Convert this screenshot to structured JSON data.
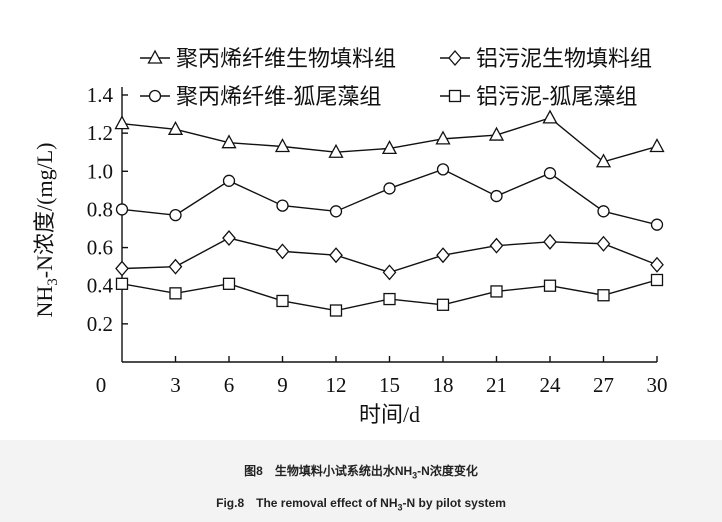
{
  "chart_data": {
    "type": "line",
    "xlabel": "时间/d",
    "ylabel": "NH3-N浓度/(mg/L)",
    "origin_label": "0",
    "xlim": [
      0,
      30
    ],
    "ylim": [
      0,
      1.4
    ],
    "xticks": [
      3,
      6,
      9,
      12,
      15,
      18,
      21,
      24,
      27,
      30
    ],
    "yticks": [
      0.2,
      0.4,
      0.6,
      0.8,
      1.0,
      1.2,
      1.4
    ],
    "grid": false,
    "legend_placement": "top",
    "x": [
      0,
      3,
      6,
      9,
      12,
      15,
      18,
      21,
      24,
      27,
      30
    ],
    "series": [
      {
        "name": "聚丙烯纤维生物填料组",
        "marker": "triangle",
        "values": [
          1.25,
          1.22,
          1.15,
          1.13,
          1.1,
          1.12,
          1.17,
          1.19,
          1.28,
          1.05,
          1.13
        ]
      },
      {
        "name": "铝污泥生物填料组",
        "marker": "diamond",
        "values": [
          0.49,
          0.5,
          0.65,
          0.58,
          0.56,
          0.47,
          0.56,
          0.61,
          0.63,
          0.62,
          0.51
        ]
      },
      {
        "name": "聚丙烯纤维-狐尾藻组",
        "marker": "circle",
        "values": [
          0.8,
          0.77,
          0.95,
          0.82,
          0.79,
          0.91,
          1.01,
          0.87,
          0.99,
          0.79,
          0.72
        ]
      },
      {
        "name": "铝污泥-狐尾藻组",
        "marker": "square",
        "values": [
          0.41,
          0.36,
          0.41,
          0.32,
          0.27,
          0.33,
          0.3,
          0.37,
          0.4,
          0.35,
          0.43
        ]
      }
    ]
  },
  "caption": {
    "cn": "图8　生物填料小试系统出水NH3-N浓度变化",
    "en": "Fig.8　The removal effect of NH3-N by pilot system"
  }
}
